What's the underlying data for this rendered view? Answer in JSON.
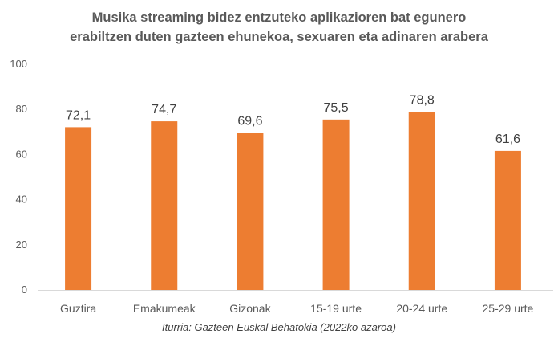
{
  "chart_data": {
    "type": "bar",
    "title_lines": [
      "Musika streaming bidez entzuteko aplikazioren bat egunero",
      "erabiltzen duten gazteen ehunekoa, sexuaren eta adinaren arabera"
    ],
    "categories": [
      "Guztira",
      "Emakumeak",
      "Gizonak",
      "15-19 urte",
      "20-24 urte",
      "25-29 urte"
    ],
    "values": [
      72.1,
      74.7,
      69.6,
      75.5,
      78.8,
      61.6
    ],
    "data_labels": [
      "72,1",
      "74,7",
      "69,6",
      "75,5",
      "78,8",
      "61,6"
    ],
    "yticks": [
      0,
      20,
      40,
      60,
      80,
      100
    ],
    "ylim": [
      0,
      100
    ],
    "xlabel": "",
    "ylabel": "",
    "grid": false,
    "bar_color": "#ED7D31",
    "source": "Iturria: Gazteen Euskal Behatokia (2022ko azaroa)"
  }
}
